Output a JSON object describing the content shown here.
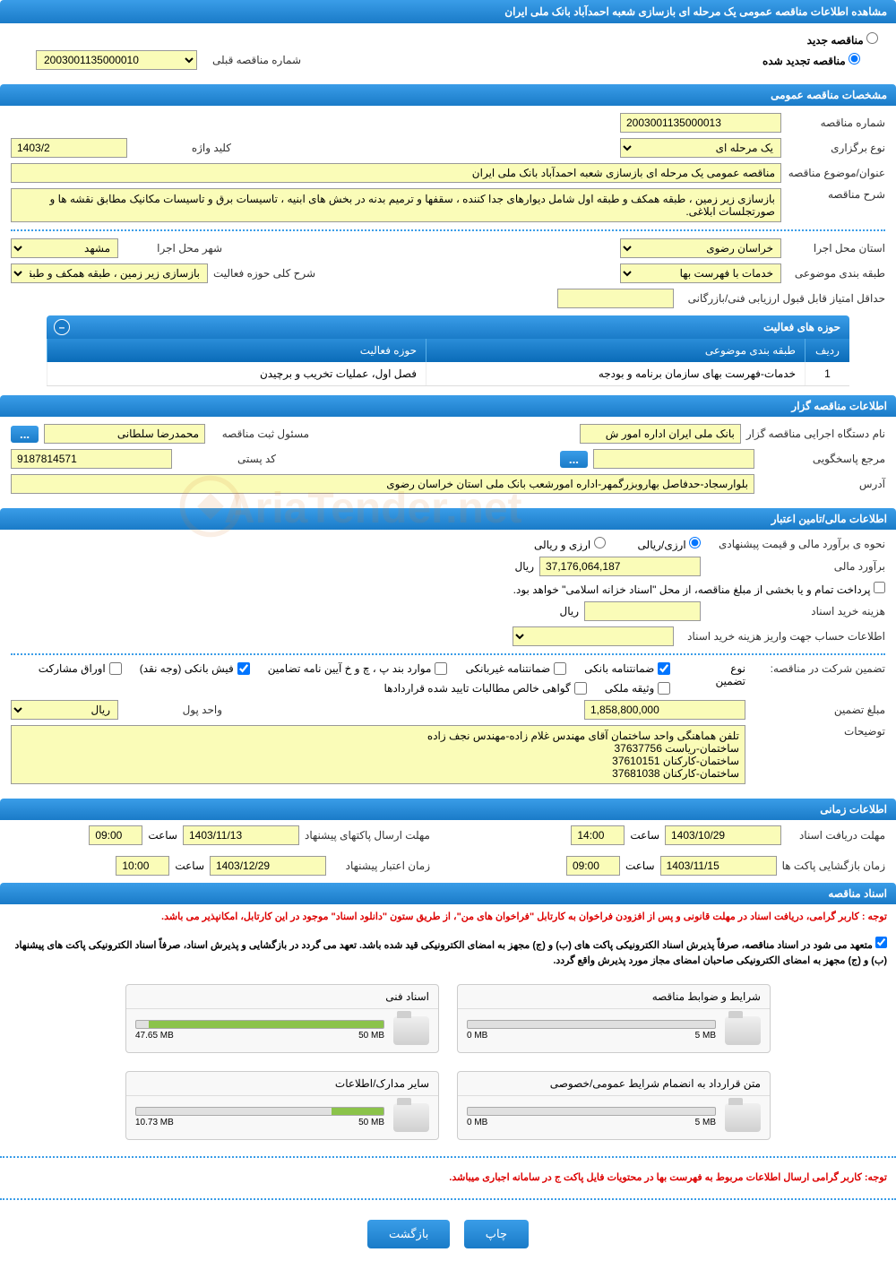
{
  "page_title": "مشاهده اطلاعات مناقصه عمومی یک مرحله ای بازسازی شعبه احمدآباد بانک ملی ایران",
  "radios": {
    "new_tender": "مناقصه جدید",
    "renewed_tender": "مناقصه تجدید شده",
    "prev_number_label": "شماره مناقصه قبلی",
    "prev_number_value": "2003001135000010"
  },
  "section_general": {
    "title": "مشخصات مناقصه عمومی",
    "tender_number_lbl": "شماره مناقصه",
    "tender_number": "2003001135000013",
    "type_lbl": "نوع برگزاری",
    "type_val": "یک مرحله ای",
    "keyword_lbl": "کلید واژه",
    "keyword_val": "1403/2",
    "subject_lbl": "عنوان/موضوع مناقصه",
    "subject_val": "مناقصه عمومی یک مرحله ای بازسازی شعبه احمدآباد بانک ملی ایران",
    "desc_lbl": "شرح مناقصه",
    "desc_val": "بازسازی زیر زمین ، طبقه همکف و طبقه اول شامل دیوارهای جدا کننده ، سقفها و ترمیم بدنه در بخش های ابنیه ، تاسیسات برق و تاسیسات مکانیک مطابق نقشه ها و صورتجلسات ابلاغی.",
    "province_lbl": "استان محل اجرا",
    "province_val": "خراسان رضوی",
    "city_lbl": "شهر محل اجرا",
    "city_val": "مشهد",
    "category_lbl": "طبقه بندی موضوعی",
    "category_val": "خدمات با فهرست بها",
    "activity_lbl": "شرح کلی حوزه فعالیت",
    "activity_val": "بازسازی زیر زمین ، طبقه همکف و طبقه اول شامل",
    "min_score_lbl": "حداقل امتیاز قابل قبول ارزیابی فنی/بازرگانی"
  },
  "activity_table": {
    "header": "حوزه های فعالیت",
    "col_num": "ردیف",
    "col_cat": "طبقه بندی موضوعی",
    "col_act": "حوزه فعالیت",
    "rows": [
      {
        "n": "1",
        "cat": "خدمات-فهرست بهای سازمان برنامه و بودجه",
        "act": "فصل اول، عملیات تخریب و برچیدن"
      }
    ]
  },
  "section_purchaser": {
    "title": "اطلاعات مناقصه گزار",
    "org_lbl": "نام دستگاه اجرایی مناقصه گزار",
    "org_val": "بانک ملی ایران اداره امور ش",
    "reg_person_lbl": "مسئول ثبت مناقصه",
    "reg_person_val": "محمدرضا سلطانی",
    "resp_lbl": "مرجع پاسخگویی",
    "resp_val": "",
    "postal_lbl": "کد پستی",
    "postal_val": "9187814571",
    "address_lbl": "آدرس",
    "address_val": "بلوارسجاد-حدفاصل بهاروبزرگمهر-اداره امورشعب بانک ملی استان خراسان رضوی"
  },
  "section_finance": {
    "title": "اطلاعات مالی/تامین اعتبار",
    "method_lbl": "نحوه ی برآورد مالی و قیمت پیشنهادی",
    "opt_rial": "ارزی/ریالی",
    "opt_both": "ارزی و ریالی",
    "estimate_lbl": "برآورد مالی",
    "estimate_val": "37,176,064,187",
    "currency": "ریال",
    "treasury_check": "پرداخت تمام و یا بخشی از مبلغ مناقصه، از محل \"اسناد خزانه اسلامی\" خواهد بود.",
    "doc_cost_lbl": "هزینه خرید اسناد",
    "account_lbl": "اطلاعات حساب جهت واریز هزینه خرید اسناد",
    "guarantee_lbl": "تضمین شرکت در مناقصه:",
    "guarantee_type_lbl": "نوع تضمین",
    "chk_bank": "ضمانتنامه بانکی",
    "chk_nonbank": "ضمانتنامه غیربانکی",
    "chk_regs": "موارد بند پ ، چ و خ آیین نامه تضامین",
    "chk_cash": "فیش بانکی (وجه نقد)",
    "chk_bonds": "اوراق مشارکت",
    "chk_property": "وثیقه ملکی",
    "chk_approved": "گواهی خالص مطالبات تایید شده قراردادها",
    "guarantee_amount_lbl": "مبلغ تضمین",
    "guarantee_amount_val": "1,858,800,000",
    "unit_lbl": "واحد پول",
    "unit_val": "ریال",
    "notes_lbl": "توضیحات",
    "notes_val": "تلفن هماهنگی واحد ساختمان آقای مهندس غلام زاده-مهندس نجف زاده\nساختمان-ریاست 37637756\nساختمان-کارکنان 37610151\nساختمان-کارکنان 37681038"
  },
  "section_time": {
    "title": "اطلاعات زمانی",
    "receive_lbl": "مهلت دریافت اسناد",
    "receive_date": "1403/10/29",
    "time_lbl": "ساعت",
    "receive_time": "14:00",
    "send_lbl": "مهلت ارسال پاکتهای پیشنهاد",
    "send_date": "1403/11/13",
    "send_time": "09:00",
    "open_lbl": "زمان بازگشایی پاکت ها",
    "open_date": "1403/11/15",
    "open_time": "09:00",
    "validity_lbl": "زمان اعتبار پیشنهاد",
    "validity_date": "1403/12/29",
    "validity_time": "10:00"
  },
  "section_docs": {
    "title": "اسناد مناقصه",
    "notice1": "توجه : کاربر گرامی، دریافت اسناد در مهلت قانونی و پس از افزودن فراخوان به کارتابل \"فراخوان های من\"، از طریق ستون \"دانلود اسناد\" موجود در این کارتابل، امکانپذیر می باشد.",
    "notice2": "متعهد می شود در اسناد مناقصه، صرفاً پذیرش اسناد الکترونیکی پاکت های (ب) و (ج) مجهز به امضای الکترونیکی قید شده باشد. تعهد می گردد در بازگشایی و پذیرش اسناد، صرفاً اسناد الکترونیکی پاکت های پیشنهاد (ب) و (ج) مجهز به امضای الکترونیکی صاحبان امضای مجاز مورد پذیرش واقع گردد.",
    "attachments": [
      {
        "title": "شرایط و ضوابط مناقصه",
        "used": "0 MB",
        "max": "5 MB",
        "fill": 0
      },
      {
        "title": "اسناد فنی",
        "used": "47.65 MB",
        "max": "50 MB",
        "fill": 95
      },
      {
        "title": "متن قرارداد به انضمام شرایط عمومی/خصوصی",
        "used": "0 MB",
        "max": "5 MB",
        "fill": 0
      },
      {
        "title": "سایر مدارک/اطلاعات",
        "used": "10.73 MB",
        "max": "50 MB",
        "fill": 21
      }
    ],
    "notice3": "توجه: کاربر گرامی ارسال اطلاعات مربوط به فهرست بها در محتویات فایل پاکت ج در سامانه اجباری میباشد."
  },
  "footer": {
    "print": "چاپ",
    "back": "بازگشت"
  },
  "watermark": "AriaTender.net"
}
